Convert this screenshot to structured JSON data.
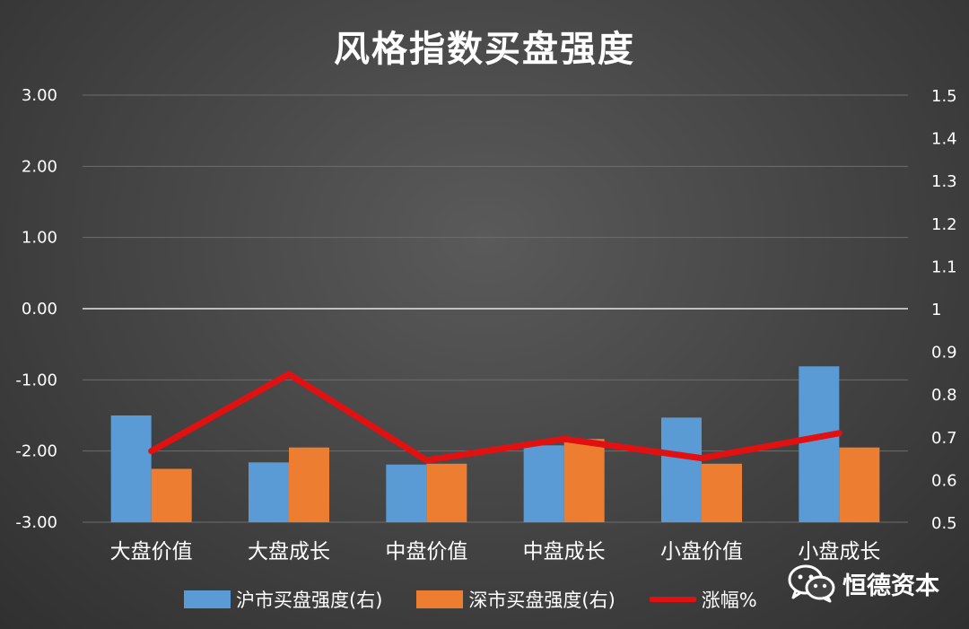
{
  "chart_data": {
    "type": "bar",
    "title": "风格指数买盘强度",
    "categories": [
      "大盘价值",
      "大盘成长",
      "中盘价值",
      "中盘成长",
      "小盘价值",
      "小盘成长"
    ],
    "y_left": {
      "ylim": [
        -3,
        3
      ],
      "ticks": [
        "3.00",
        "2.00",
        "1.00",
        "0.00",
        "-1.00",
        "-2.00",
        "-3.00"
      ],
      "tick_values": [
        3,
        2,
        1,
        0,
        -1,
        -2,
        -3
      ]
    },
    "y_right": {
      "ylim": [
        0.5,
        1.5
      ],
      "ticks": [
        "1.5",
        "1.4",
        "1.3",
        "1.2",
        "1.1",
        "1",
        "0.9",
        "0.8",
        "0.7",
        "0.6",
        "0.5"
      ],
      "tick_values": [
        1.5,
        1.4,
        1.3,
        1.2,
        1.1,
        1.0,
        0.9,
        0.8,
        0.7,
        0.6,
        0.5
      ]
    },
    "series": [
      {
        "name": "沪市买盘强度(右)",
        "type": "bar",
        "axis": "right",
        "color": "#5b9bd5",
        "values": [
          0.75,
          0.64,
          0.635,
          0.68,
          0.745,
          0.865
        ]
      },
      {
        "name": "深市买盘强度(右)",
        "type": "bar",
        "axis": "right",
        "color": "#ed7d31",
        "values": [
          0.625,
          0.675,
          0.637,
          0.695,
          0.637,
          0.675
        ]
      },
      {
        "name": "涨幅%",
        "type": "line",
        "axis": "left",
        "color": "#e11111",
        "values": [
          -2.0,
          -0.92,
          -2.13,
          -1.83,
          -2.1,
          -1.75
        ]
      }
    ],
    "grid": true,
    "legend_position": "bottom"
  },
  "watermark": {
    "text": "恒德资本"
  }
}
